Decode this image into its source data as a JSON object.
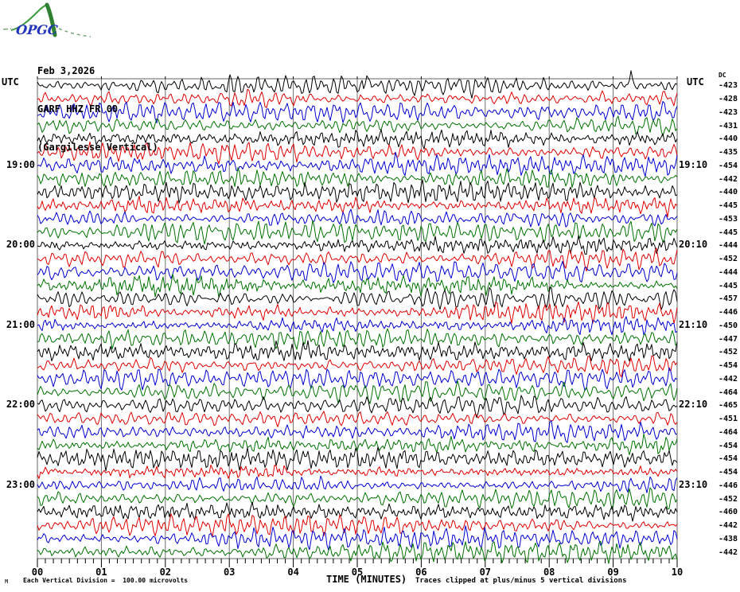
{
  "ui": {
    "logo_text": "OPGC",
    "header": {
      "date": "Feb 3,2026",
      "station": "GARF HHZ FR 00",
      "description": "(Gargilesse Vertical)"
    },
    "axis": {
      "utc_left": "UTC",
      "utc_right": "UTC",
      "dc_header": "DC",
      "x_title": "TIME (MINUTES)"
    },
    "footer": {
      "corner_glyph": "M",
      "division_note": "Each Vertical Division =  100.00 microvolts",
      "clip_note": "Traces clipped at plus/minus 5 vertical divisions"
    }
  },
  "palette": {
    "black": "#000000",
    "red": "#e00000",
    "blue": "#0000d0",
    "green": "#007200",
    "grid": "#707070",
    "border": "#666666",
    "tick": "#000000",
    "logo_green": "#3c9a3c",
    "logo_green_dark": "#2f8032",
    "logo_dash": "#7aa87a",
    "logo_blue": "#2233bb"
  },
  "chart_data": {
    "type": "line",
    "subtype": "seismic-helicorder",
    "title": "GARF HHZ FR 00",
    "subtitle": "(Gargilesse Vertical)",
    "date": "Feb 3,2026",
    "xlabel": "TIME (MINUTES)",
    "x_range": [
      0,
      10
    ],
    "x_tick_labels": [
      "00",
      "01",
      "02",
      "03",
      "04",
      "05",
      "06",
      "07",
      "08",
      "09",
      "10"
    ],
    "minor_ticks_per_minute": 8,
    "rows": 36,
    "minutes_per_row": 10,
    "row_color_cycle": [
      "black",
      "red",
      "blue",
      "green"
    ],
    "row_dc_offsets": [
      -423,
      -428,
      -423,
      -431,
      -440,
      -435,
      -454,
      -442,
      -440,
      -445,
      -453,
      -445,
      -444,
      -452,
      -444,
      -445,
      -457,
      -446,
      -450,
      -447,
      -452,
      -454,
      -442,
      -464,
      -465,
      -451,
      -464,
      -454,
      -454,
      -454,
      -446,
      -452,
      -460,
      -442,
      -438,
      -442
    ],
    "hour_labels_left": [
      {
        "row": 7,
        "label": "19:00"
      },
      {
        "row": 13,
        "label": "20:00"
      },
      {
        "row": 19,
        "label": "21:00"
      },
      {
        "row": 25,
        "label": "22:00"
      },
      {
        "row": 31,
        "label": "23:00"
      }
    ],
    "hour_labels_right": [
      {
        "row": 7,
        "label": "19:10"
      },
      {
        "row": 13,
        "label": "20:10"
      },
      {
        "row": 19,
        "label": "21:10"
      },
      {
        "row": 25,
        "label": "22:10"
      },
      {
        "row": 31,
        "label": "23:10"
      }
    ],
    "vertical_division_microvolts": 100.0,
    "clip_divisions": 5,
    "spike_marks_row1_minutes": [
      5.14,
      9.28
    ],
    "waveform_seed": 42
  }
}
